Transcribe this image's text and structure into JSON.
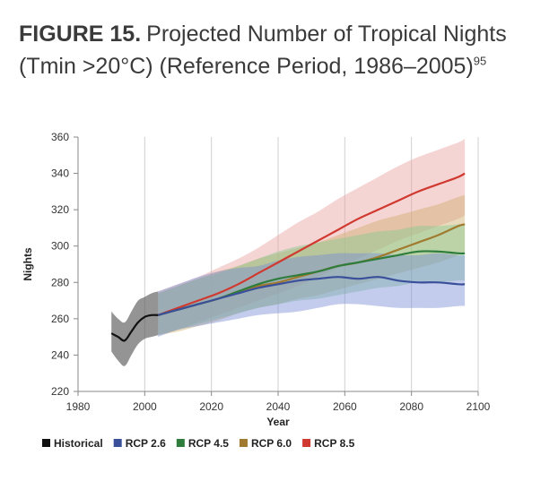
{
  "title": {
    "lead": "FIGURE 15.",
    "text": "Projected Number of Tropical Nights (Tmin >20°C) (Reference Period, 1986–2005)",
    "superscript": "95"
  },
  "chart_data": {
    "type": "area",
    "xlabel": "Year",
    "ylabel": "Nights",
    "xlim": [
      1980,
      2100
    ],
    "ylim": [
      220,
      360
    ],
    "xticks": [
      1980,
      2000,
      2020,
      2040,
      2060,
      2080,
      2100
    ],
    "yticks": [
      220,
      240,
      260,
      280,
      300,
      320,
      340,
      360
    ],
    "grid": "vertical",
    "legend_position": "bottom",
    "series": [
      {
        "name": "Historical",
        "color": "#111111",
        "band_color": "#5a5a5a",
        "x": [
          1990,
          1992,
          1994,
          1996,
          1998,
          2000,
          2002,
          2004
        ],
        "values": [
          252,
          250,
          248,
          253,
          258,
          261,
          262,
          262
        ],
        "lower": [
          242,
          237,
          234,
          240,
          246,
          249,
          250,
          251
        ],
        "upper": [
          264,
          260,
          258,
          264,
          270,
          272,
          274,
          275
        ]
      },
      {
        "name": "RCP 2.6",
        "color": "#3a4f9a",
        "band_color": "#7b8fd4",
        "x": [
          2004,
          2010,
          2016,
          2022,
          2028,
          2034,
          2040,
          2046,
          2052,
          2058,
          2064,
          2070,
          2076,
          2082,
          2088,
          2094,
          2096
        ],
        "values": [
          262,
          265,
          268,
          271,
          274,
          277,
          279,
          281,
          282,
          283,
          282,
          283,
          281,
          280,
          280,
          279,
          279
        ],
        "lower": [
          250,
          254,
          256,
          258,
          260,
          262,
          263,
          264,
          266,
          268,
          268,
          267,
          266,
          266,
          266,
          267,
          267
        ],
        "upper": [
          275,
          279,
          283,
          286,
          288,
          289,
          292,
          294,
          295,
          296,
          296,
          296,
          295,
          295,
          296,
          295,
          295
        ]
      },
      {
        "name": "RCP 4.5",
        "color": "#2e7d3c",
        "band_color": "#86c98e",
        "x": [
          2004,
          2010,
          2016,
          2022,
          2028,
          2034,
          2040,
          2046,
          2052,
          2058,
          2064,
          2070,
          2076,
          2082,
          2088,
          2094,
          2096
        ],
        "values": [
          262,
          265,
          268,
          271,
          275,
          279,
          282,
          284,
          286,
          289,
          291,
          293,
          295,
          297,
          297,
          296,
          296
        ],
        "lower": [
          251,
          254,
          257,
          260,
          263,
          266,
          268,
          270,
          271,
          273,
          275,
          277,
          278,
          280,
          280,
          281,
          281
        ],
        "upper": [
          274,
          278,
          282,
          285,
          289,
          293,
          297,
          300,
          302,
          304,
          306,
          308,
          309,
          311,
          311,
          312,
          312
        ]
      },
      {
        "name": "RCP 6.0",
        "color": "#a07a2e",
        "band_color": "#cfae6c",
        "x": [
          2004,
          2010,
          2016,
          2022,
          2028,
          2034,
          2040,
          2046,
          2052,
          2058,
          2064,
          2070,
          2076,
          2082,
          2088,
          2094,
          2096
        ],
        "values": [
          262,
          265,
          268,
          271,
          275,
          278,
          280,
          283,
          286,
          289,
          291,
          294,
          298,
          302,
          306,
          311,
          312
        ],
        "lower": [
          251,
          253,
          256,
          259,
          263,
          266,
          268,
          271,
          273,
          276,
          279,
          282,
          285,
          288,
          291,
          295,
          297
        ],
        "upper": [
          274,
          278,
          282,
          286,
          289,
          293,
          296,
          299,
          302,
          306,
          310,
          314,
          317,
          320,
          323,
          327,
          328
        ]
      },
      {
        "name": "RCP 8.5",
        "color": "#d0392f",
        "band_color": "#e8a0a0",
        "x": [
          2004,
          2010,
          2016,
          2022,
          2028,
          2034,
          2040,
          2046,
          2052,
          2058,
          2064,
          2070,
          2076,
          2082,
          2088,
          2094,
          2096
        ],
        "values": [
          262,
          266,
          270,
          274,
          279,
          285,
          291,
          297,
          303,
          309,
          315,
          320,
          325,
          330,
          334,
          338,
          340
        ],
        "lower": [
          251,
          254,
          258,
          262,
          266,
          270,
          274,
          278,
          283,
          288,
          293,
          298,
          303,
          307,
          311,
          315,
          317
        ],
        "upper": [
          275,
          279,
          283,
          288,
          293,
          299,
          306,
          313,
          319,
          326,
          332,
          338,
          344,
          349,
          353,
          357,
          359
        ]
      }
    ]
  }
}
